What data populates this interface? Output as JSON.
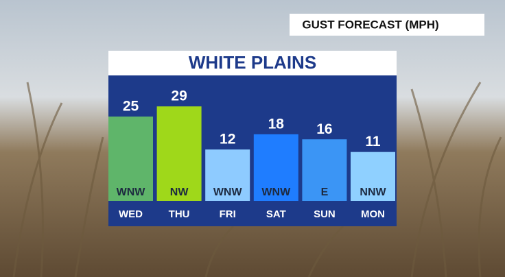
{
  "chart_data": {
    "type": "bar",
    "header": "GUST FORECAST (MPH)",
    "title": "WHITE PLAINS",
    "categories": [
      "WED",
      "THU",
      "FRI",
      "SAT",
      "SUN",
      "MON"
    ],
    "values": [
      25,
      29,
      12,
      18,
      16,
      11
    ],
    "directions": [
      "WNW",
      "NW",
      "WNW",
      "WNW",
      "E",
      "NNW"
    ],
    "colors": [
      "#5fb56a",
      "#9fd81a",
      "#8ecbff",
      "#1f7dff",
      "#3b95f5",
      "#8fd0ff"
    ],
    "ylim": [
      -8.3,
      35
    ]
  }
}
